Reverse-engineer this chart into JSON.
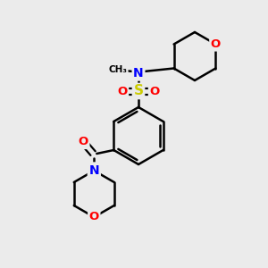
{
  "background_color": "#EBEBEB",
  "atom_colors": {
    "C": "#000000",
    "N": "#0000FF",
    "O": "#FF0000",
    "S": "#CCCC00"
  },
  "bond_color": "#000000",
  "bond_width": 1.8,
  "figsize": [
    3.0,
    3.0
  ],
  "dpi": 100
}
